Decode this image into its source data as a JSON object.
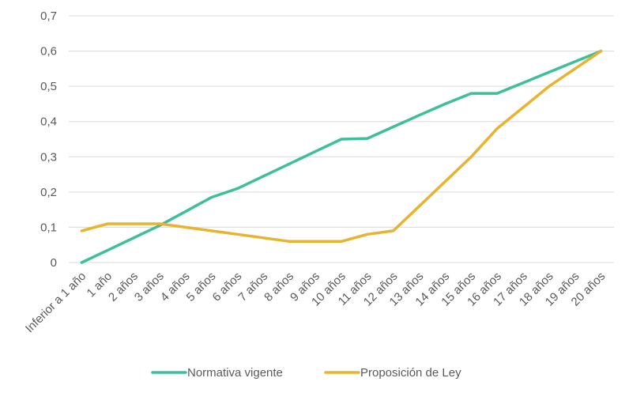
{
  "chart_data": {
    "type": "line",
    "categories": [
      "Inferior a 1 año",
      "1 año",
      "2 años",
      "3 años",
      "4 años",
      "5 años",
      "6 años",
      "7 años",
      "8 años",
      "9 años",
      "10 años",
      "11 años",
      "12 años",
      "13 años",
      "14 años",
      "15 años",
      "16 años",
      "17 años",
      "18 años",
      "19 años",
      "20 años"
    ],
    "series": [
      {
        "name": "Normativa vigente",
        "color": "#3dbf9a",
        "values": [
          0,
          0.035,
          0.07,
          0.105,
          0.145,
          0.185,
          0.21,
          0.245,
          0.28,
          0.315,
          0.35,
          0.352,
          0.385,
          0.418,
          0.45,
          0.48,
          0.48,
          0.51,
          0.54,
          0.57,
          0.6
        ]
      },
      {
        "name": "Proposición de Ley",
        "color": "#e8b32e",
        "values": [
          0.09,
          0.11,
          0.11,
          0.11,
          0.1,
          0.09,
          0.08,
          0.07,
          0.06,
          0.06,
          0.06,
          0.08,
          0.09,
          0.16,
          0.23,
          0.3,
          0.38,
          0.44,
          0.5,
          0.55,
          0.6
        ]
      }
    ],
    "y_ticks": [
      "0",
      "0,1",
      "0,2",
      "0,3",
      "0,4",
      "0,5",
      "0,6",
      "0,7"
    ],
    "ylim": [
      0,
      0.7
    ],
    "grid": true,
    "legend_position": "bottom"
  }
}
